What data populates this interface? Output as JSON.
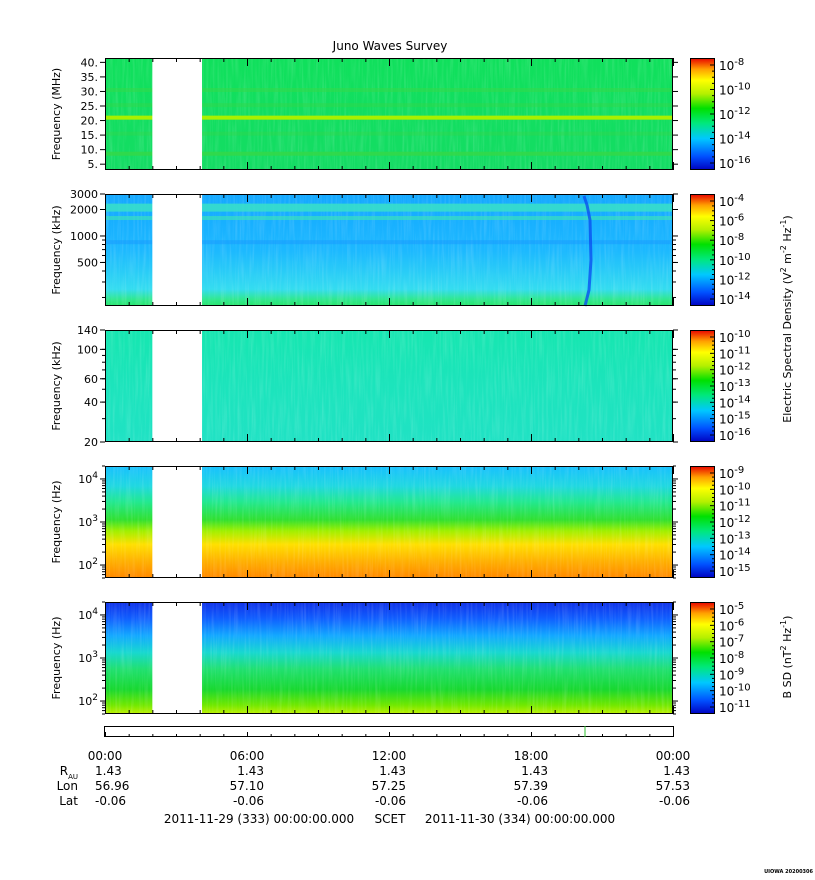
{
  "chart_data": {
    "type": "heatmap",
    "title": "Juno Waves Survey",
    "colorbar_colors": [
      "#0000c0",
      "#0050ff",
      "#00c8ff",
      "#00e87a",
      "#00e000",
      "#b4f000",
      "#ffff00",
      "#ffa000",
      "#ff4000",
      "#e80000"
    ],
    "panels": [
      {
        "ylabel": "Frequency (MHz)",
        "yscale": "linear",
        "ylim": [
          3,
          41.5
        ],
        "yticks": [
          {
            "v": 5,
            "label": "5."
          },
          {
            "v": 10,
            "label": "10."
          },
          {
            "v": 15,
            "label": "15."
          },
          {
            "v": 20,
            "label": "20."
          },
          {
            "v": 25,
            "label": "25."
          },
          {
            "v": 30,
            "label": "30."
          },
          {
            "v": 35,
            "label": "35."
          },
          {
            "v": 40,
            "label": "40."
          }
        ],
        "colorbar": {
          "exps": [
            "-8",
            "-10",
            "-12",
            "-14",
            "-16"
          ],
          "label": ""
        }
      },
      {
        "ylabel": "Frequency (kHz)",
        "yscale": "log",
        "ylim": [
          160,
          3000
        ],
        "yticks": [
          {
            "v": 500,
            "label": "500"
          },
          {
            "v": 1000,
            "label": "1000"
          },
          {
            "v": 2000,
            "label": "2000"
          },
          {
            "v": 3000,
            "label": "3000"
          }
        ],
        "colorbar": {
          "exps": [
            "-4",
            "-6",
            "-8",
            "-10",
            "-12",
            "-14"
          ],
          "label": ""
        }
      },
      {
        "ylabel": "Frequency (kHz)",
        "yscale": "log",
        "ylim": [
          20,
          140
        ],
        "yticks": [
          {
            "v": 20,
            "label": "20"
          },
          {
            "v": 40,
            "label": "40"
          },
          {
            "v": 60,
            "label": "60"
          },
          {
            "v": 100,
            "label": "100"
          },
          {
            "v": 140,
            "label": "140"
          }
        ],
        "colorbar": {
          "exps": [
            "-10",
            "-11",
            "-12",
            "-13",
            "-14",
            "-15",
            "-16"
          ],
          "label": ""
        }
      },
      {
        "ylabel": "Frequency (Hz)",
        "yscale": "log",
        "ylim": [
          50,
          20000
        ],
        "yticks": [
          {
            "v": 100,
            "label": "10",
            "exp": "2"
          },
          {
            "v": 1000,
            "label": "10",
            "exp": "3"
          },
          {
            "v": 10000,
            "label": "10",
            "exp": "4"
          }
        ],
        "colorbar": {
          "exps": [
            "-9",
            "-10",
            "-11",
            "-12",
            "-13",
            "-14",
            "-15"
          ],
          "label": ""
        }
      },
      {
        "ylabel": "Frequency (Hz)",
        "yscale": "log",
        "ylim": [
          50,
          20000
        ],
        "yticks": [
          {
            "v": 100,
            "label": "10",
            "exp": "2"
          },
          {
            "v": 1000,
            "label": "10",
            "exp": "3"
          },
          {
            "v": 10000,
            "label": "10",
            "exp": "4"
          }
        ],
        "colorbar": {
          "exps": [
            "-5",
            "-6",
            "-7",
            "-8",
            "-9",
            "-10",
            "-11"
          ],
          "label": ""
        }
      }
    ],
    "colorbar_label_e": "Electric Spectral Density (V",
    "colorbar_label_b": "B SD (nT",
    "data_gap_hours": [
      2.0,
      4.1
    ],
    "xlim_hours": [
      0,
      24
    ],
    "x_ticks": [
      {
        "h": 0,
        "label": "00:00"
      },
      {
        "h": 6,
        "label": "06:00"
      },
      {
        "h": 12,
        "label": "12:00"
      },
      {
        "h": 18,
        "label": "18:00"
      },
      {
        "h": 24,
        "label": "00:00"
      }
    ],
    "ephemeris": {
      "row_labels": [
        "R",
        "Lon",
        "Lat"
      ],
      "r_subscript": "AU",
      "rows": [
        [
          "1.43",
          "1.43",
          "1.43",
          "1.43",
          "1.43"
        ],
        [
          "56.96",
          "57.10",
          "57.25",
          "57.39",
          "57.53"
        ],
        [
          "-0.06",
          "-0.06",
          "-0.06",
          "-0.06",
          "-0.06"
        ]
      ]
    },
    "footer": {
      "start": "2011-11-29 (333) 00:00:00.000",
      "scet": "SCET",
      "end": "2011-11-30 (334) 00:00:00.000"
    },
    "stamp": "UIOWA 20200306"
  }
}
